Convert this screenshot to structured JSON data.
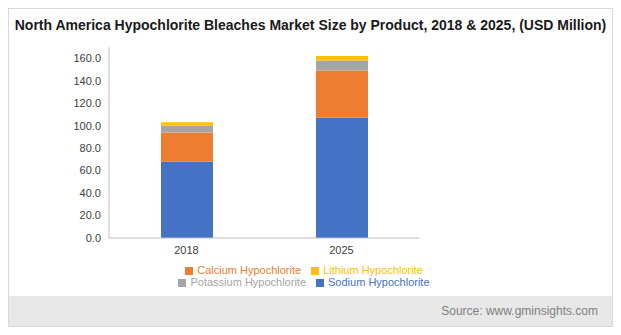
{
  "chart_data": {
    "type": "bar",
    "title": "North America Hypochlorite Bleaches Market Size by Product, 2018 & 2025, (USD Million)",
    "subtitle": "Source: www.gminsights.com",
    "categories": [
      "2018",
      "2025"
    ],
    "series": [
      {
        "name": "Sodium Hypochlorite",
        "color": "#4472C4",
        "values": [
          68,
          107
        ]
      },
      {
        "name": "Calcium Hypochlorite",
        "color": "#ED7D31",
        "values": [
          26,
          42
        ]
      },
      {
        "name": "Potassium Hypochlorite",
        "color": "#A5A5A5",
        "values": [
          6,
          9
        ]
      },
      {
        "name": "Lithium Hypochlorite",
        "color": "#FFC000",
        "values": [
          3,
          4
        ]
      }
    ],
    "ylim": [
      0,
      170
    ],
    "yticks": [
      {
        "value": 0,
        "label": "0.0"
      },
      {
        "value": 20,
        "label": "20.0"
      },
      {
        "value": 40,
        "label": "40.0"
      },
      {
        "value": 60,
        "label": "60.0"
      },
      {
        "value": 80,
        "label": "80.0"
      },
      {
        "value": 100,
        "label": "100.0"
      },
      {
        "value": 120,
        "label": "120.0"
      },
      {
        "value": 140,
        "label": "140.0"
      },
      {
        "value": 160,
        "label": "160.0"
      }
    ],
    "stacked": true,
    "grid": false,
    "legend": "bottom"
  }
}
